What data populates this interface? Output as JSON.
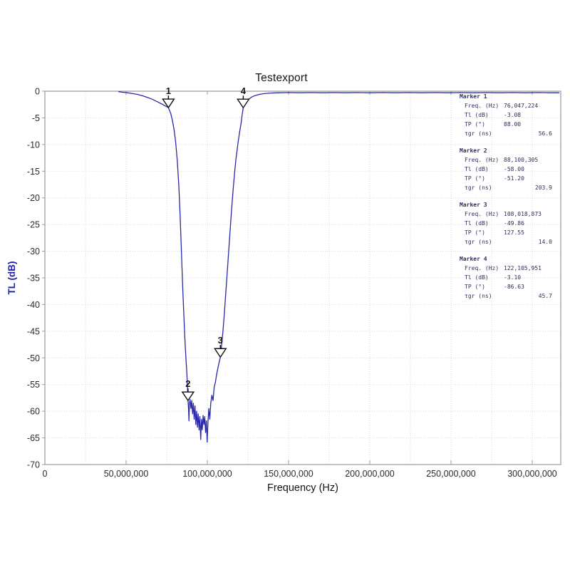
{
  "title": "Testexport",
  "chart_data": {
    "type": "line",
    "title": "Testexport",
    "xlabel": "Frequency (Hz)",
    "ylabel": "TL (dB)",
    "xlim_mhz": [
      0,
      317.5
    ],
    "ylim": [
      -70,
      0
    ],
    "grid": "dotted light gray, vertical every 25 MHz, horizontal every 5 dB",
    "legend_position": "none",
    "x_ticks": [
      {
        "mhz": 0,
        "label": "0"
      },
      {
        "mhz": 50,
        "label": "50,000,000"
      },
      {
        "mhz": 100,
        "label": "100,000,000"
      },
      {
        "mhz": 150,
        "label": "150,000,000"
      },
      {
        "mhz": 200,
        "label": "200,000,000"
      },
      {
        "mhz": 250,
        "label": "250,000,000"
      },
      {
        "mhz": 300,
        "label": "300,000,000"
      }
    ],
    "y_ticks": [
      {
        "db": 0,
        "label": "0"
      },
      {
        "db": -5,
        "label": "-5"
      },
      {
        "db": -10,
        "label": "-10"
      },
      {
        "db": -15,
        "label": "-15"
      },
      {
        "db": -20,
        "label": "-20"
      },
      {
        "db": -25,
        "label": "-25"
      },
      {
        "db": -30,
        "label": "-30"
      },
      {
        "db": -35,
        "label": "-35"
      },
      {
        "db": -40,
        "label": "-40"
      },
      {
        "db": -45,
        "label": "-45"
      },
      {
        "db": -50,
        "label": "-50"
      },
      {
        "db": -55,
        "label": "-55"
      },
      {
        "db": -60,
        "label": "-60"
      },
      {
        "db": -65,
        "label": "-65"
      },
      {
        "db": -70,
        "label": "-70"
      }
    ],
    "series": [
      {
        "name": "TL",
        "color": "#2a2aa8",
        "points_mhz_db": [
          [
            45.5,
            -0.1
          ],
          [
            48,
            -0.2
          ],
          [
            51,
            -0.3
          ],
          [
            54,
            -0.45
          ],
          [
            57,
            -0.6
          ],
          [
            60,
            -0.85
          ],
          [
            63,
            -1.15
          ],
          [
            66,
            -1.5
          ],
          [
            69,
            -1.95
          ],
          [
            72,
            -2.4
          ],
          [
            74,
            -2.75
          ],
          [
            76.05,
            -3.08
          ],
          [
            77.5,
            -4.2
          ],
          [
            78.5,
            -5.5
          ],
          [
            79.5,
            -7.2
          ],
          [
            80.5,
            -9.5
          ],
          [
            81.5,
            -13
          ],
          [
            82.5,
            -18
          ],
          [
            83.2,
            -23
          ],
          [
            83.8,
            -28
          ],
          [
            84.4,
            -33
          ],
          [
            85,
            -38
          ],
          [
            85.6,
            -42.5
          ],
          [
            86.2,
            -46.5
          ],
          [
            86.8,
            -50
          ],
          [
            87.4,
            -53
          ],
          [
            88.1,
            -58
          ],
          [
            88.4,
            -59.5
          ],
          [
            88.7,
            -61.8
          ],
          [
            89,
            -58.5
          ],
          [
            89.4,
            -57.8
          ],
          [
            89.9,
            -59.5
          ],
          [
            90.4,
            -58
          ],
          [
            90.9,
            -60.5
          ],
          [
            91.4,
            -58.5
          ],
          [
            91.9,
            -61.5
          ],
          [
            92.4,
            -59
          ],
          [
            92.9,
            -62.5
          ],
          [
            93.4,
            -60
          ],
          [
            93.9,
            -63
          ],
          [
            94.4,
            -60.5
          ],
          [
            94.9,
            -63.5
          ],
          [
            95.4,
            -61
          ],
          [
            95.9,
            -65.3
          ],
          [
            96.4,
            -61.5
          ],
          [
            96.9,
            -63.5
          ],
          [
            97.4,
            -60.8
          ],
          [
            97.9,
            -62.5
          ],
          [
            98.4,
            -61
          ],
          [
            98.9,
            -64
          ],
          [
            99.4,
            -61.8
          ],
          [
            99.9,
            -65.8
          ],
          [
            100.4,
            -62
          ],
          [
            100.9,
            -59.5
          ],
          [
            101.5,
            -61.5
          ],
          [
            102.1,
            -58.5
          ],
          [
            102.8,
            -57
          ],
          [
            103.5,
            -58
          ],
          [
            104.2,
            -55.5
          ],
          [
            105,
            -54.5
          ],
          [
            105.8,
            -53
          ],
          [
            106.6,
            -51.8
          ],
          [
            107.3,
            -50.8
          ],
          [
            108.02,
            -49.86
          ],
          [
            108.8,
            -47.5
          ],
          [
            109.6,
            -45
          ],
          [
            110.4,
            -42
          ],
          [
            111.2,
            -38.5
          ],
          [
            112,
            -35
          ],
          [
            112.8,
            -31.5
          ],
          [
            113.6,
            -28
          ],
          [
            114.4,
            -24.5
          ],
          [
            115.2,
            -21
          ],
          [
            116,
            -18
          ],
          [
            116.8,
            -15.2
          ],
          [
            117.6,
            -12.8
          ],
          [
            118.4,
            -10.8
          ],
          [
            119.2,
            -9
          ],
          [
            120,
            -7.4
          ],
          [
            120.8,
            -6
          ],
          [
            121.5,
            -4.3
          ],
          [
            122.11,
            -3.1
          ],
          [
            123.5,
            -2.2
          ],
          [
            125,
            -1.6
          ],
          [
            127,
            -1.15
          ],
          [
            129,
            -0.85
          ],
          [
            132,
            -0.6
          ],
          [
            135,
            -0.45
          ],
          [
            139,
            -0.35
          ],
          [
            144,
            -0.3
          ],
          [
            150,
            -0.25
          ],
          [
            157,
            -0.3
          ],
          [
            164,
            -0.25
          ],
          [
            171,
            -0.3
          ],
          [
            178,
            -0.25
          ],
          [
            185,
            -0.3
          ],
          [
            192,
            -0.25
          ],
          [
            200,
            -0.3
          ],
          [
            208,
            -0.25
          ],
          [
            216,
            -0.3
          ],
          [
            224,
            -0.25
          ],
          [
            232,
            -0.3
          ],
          [
            240,
            -0.25
          ],
          [
            248,
            -0.3
          ],
          [
            256,
            -0.25
          ],
          [
            264,
            -0.3
          ],
          [
            272,
            -0.25
          ],
          [
            280,
            -0.3
          ],
          [
            288,
            -0.25
          ],
          [
            296,
            -0.3
          ],
          [
            304,
            -0.25
          ],
          [
            311,
            -0.3
          ],
          [
            316.5,
            -0.3
          ]
        ]
      }
    ],
    "markers": [
      {
        "n": "1",
        "freq_label": "76,047,224",
        "freq_mhz": 76.047224,
        "tl_db": -3.08
      },
      {
        "n": "2",
        "freq_label": "88,100,305",
        "freq_mhz": 88.100305,
        "tl_db": -58.0
      },
      {
        "n": "3",
        "freq_label": "108,018,873",
        "freq_mhz": 108.018873,
        "tl_db": -49.86
      },
      {
        "n": "4",
        "freq_label": "122,105,951",
        "freq_mhz": 122.105951,
        "tl_db": -3.1
      }
    ]
  },
  "marker_panel": {
    "blocks": [
      {
        "title": "Marker 1",
        "rows": [
          {
            "label": "Freq. (Hz)",
            "value": "76,047,224",
            "align": "left"
          },
          {
            "label": "Tl (dB)",
            "value": "-3.08",
            "align": "left"
          },
          {
            "label": "TP (°)",
            "value": "88.00",
            "align": "left"
          },
          {
            "label": "τgr (ns)",
            "value": "56.6",
            "align": "right"
          }
        ]
      },
      {
        "title": "Marker 2",
        "rows": [
          {
            "label": "Freq. (Hz)",
            "value": "88,100,305",
            "align": "left"
          },
          {
            "label": "Tl (dB)",
            "value": "-58.00",
            "align": "left"
          },
          {
            "label": "TP (°)",
            "value": "-51.20",
            "align": "left"
          },
          {
            "label": "τgr (ns)",
            "value": "203.9",
            "align": "right"
          }
        ]
      },
      {
        "title": "Marker 3",
        "rows": [
          {
            "label": "Freq. (Hz)",
            "value": "108,018,873",
            "align": "left"
          },
          {
            "label": "Tl (dB)",
            "value": "-49.86",
            "align": "left"
          },
          {
            "label": "TP (°)",
            "value": "127.55",
            "align": "left"
          },
          {
            "label": "τgr (ns)",
            "value": "14.0",
            "align": "right"
          }
        ]
      },
      {
        "title": "Marker 4",
        "rows": [
          {
            "label": "Freq. (Hz)",
            "value": "122,105,951",
            "align": "left"
          },
          {
            "label": "Tl (dB)",
            "value": "-3.10",
            "align": "left"
          },
          {
            "label": "TP (°)",
            "value": "-86.63",
            "align": "left"
          },
          {
            "label": "τgr (ns)",
            "value": "45.7",
            "align": "right"
          }
        ]
      }
    ]
  },
  "colors": {
    "trace": "#2a2aa8",
    "axis_label_blue": "#2222aa",
    "border": "#9a9a9a",
    "grid": "#d9d9d9",
    "tick_text": "#2b2b2b",
    "panel_text": "#2e2e5e",
    "marker_outline": "#111111"
  }
}
